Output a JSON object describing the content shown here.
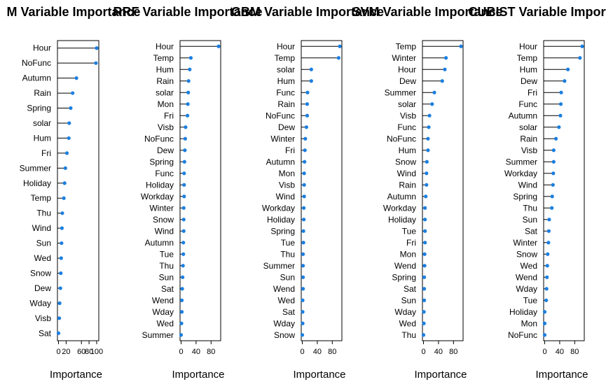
{
  "chart_data": [
    {
      "type": "lollipop",
      "title": "M Variable Importance",
      "xlabel": "Importance",
      "xlim": [
        0,
        100
      ],
      "xticks": [
        0,
        20,
        60,
        80,
        100
      ],
      "xtick_labels": [
        "0",
        "20",
        "60",
        "80",
        "100"
      ],
      "categories": [
        "Hour",
        "NoFunc",
        "Autumn",
        "Rain",
        "Spring",
        "solar",
        "Hum",
        "Fri",
        "Summer",
        "Holiday",
        "Temp",
        "Thu",
        "Wind",
        "Sun",
        "Wed",
        "Snow",
        "Dew",
        "Wday",
        "Visb",
        "Sat"
      ],
      "values": [
        100,
        98,
        47,
        37,
        32,
        28,
        27,
        22,
        18,
        16,
        14,
        10,
        9,
        8,
        7,
        6,
        5,
        3,
        2,
        0
      ]
    },
    {
      "type": "lollipop",
      "title": "RRF Variable Importance",
      "xlabel": "Importance",
      "xlim": [
        0,
        100
      ],
      "xticks": [
        0,
        40,
        80
      ],
      "xtick_labels": [
        "0",
        "40",
        "80"
      ],
      "categories": [
        "Hour",
        "Temp",
        "Hum",
        "Rain",
        "solar",
        "Mon",
        "Fri",
        "Visb",
        "NoFunc",
        "Dew",
        "Spring",
        "Func",
        "Holiday",
        "Workday",
        "Winter",
        "Snow",
        "Wind",
        "Autumn",
        "Tue",
        "Thu",
        "Sun",
        "Sat",
        "Wend",
        "Wday",
        "Wed",
        "Summer"
      ],
      "values": [
        100,
        26,
        23,
        20,
        19,
        18,
        17,
        12,
        11,
        10,
        9,
        8,
        8,
        8,
        7,
        7,
        7,
        6,
        6,
        5,
        4,
        3,
        2,
        2,
        1,
        0
      ]
    },
    {
      "type": "lollipop",
      "title": "GBM Variable Importance",
      "xlabel": "Importance",
      "xlim": [
        0,
        100
      ],
      "xticks": [
        0,
        40,
        80
      ],
      "xtick_labels": [
        "0",
        "40",
        "80"
      ],
      "categories": [
        "Hour",
        "Temp",
        "solar",
        "Hum",
        "Func",
        "Rain",
        "NoFunc",
        "Dew",
        "Winter",
        "Fri",
        "Autumn",
        "Mon",
        "Visb",
        "Wind",
        "Workday",
        "Holiday",
        "Spring",
        "Tue",
        "Thu",
        "Summer",
        "Sun",
        "Wend",
        "Wed",
        "Sat",
        "Wday",
        "Snow"
      ],
      "values": [
        100,
        97,
        24,
        24,
        14,
        13,
        13,
        11,
        8,
        7,
        6,
        5,
        5,
        5,
        4,
        4,
        3,
        3,
        2,
        2,
        2,
        2,
        1,
        1,
        1,
        0
      ]
    },
    {
      "type": "lollipop",
      "title": "SVM Variable Importance",
      "xlabel": "Importance",
      "xlim": [
        0,
        100
      ],
      "xticks": [
        0,
        40,
        80
      ],
      "xtick_labels": [
        "0",
        "40",
        "80"
      ],
      "categories": [
        "Temp",
        "Winter",
        "Hour",
        "Dew",
        "Summer",
        "solar",
        "Visb",
        "Func",
        "NoFunc",
        "Hum",
        "Snow",
        "Wind",
        "Rain",
        "Autumn",
        "Workday",
        "Holiday",
        "Tue",
        "Fri",
        "Mon",
        "Wend",
        "Spring",
        "Sat",
        "Sun",
        "Wday",
        "Wed",
        "Thu"
      ],
      "values": [
        100,
        60,
        57,
        50,
        29,
        23,
        16,
        14,
        12,
        12,
        9,
        8,
        8,
        6,
        4,
        4,
        4,
        4,
        3,
        3,
        2,
        2,
        2,
        1,
        1,
        0
      ]
    },
    {
      "type": "lollipop",
      "title": "CUBIST Variable Importance",
      "xlabel": "Importance",
      "xlim": [
        0,
        100
      ],
      "xticks": [
        0,
        40,
        80
      ],
      "xtick_labels": [
        "0",
        "40",
        "80"
      ],
      "categories": [
        "Hour",
        "Temp",
        "Hum",
        "Dew",
        "Fri",
        "Func",
        "Autumn",
        "solar",
        "Rain",
        "Visb",
        "Summer",
        "Workday",
        "Wind",
        "Spring",
        "Thu",
        "Sun",
        "Sat",
        "Winter",
        "Snow",
        "Wed",
        "Wend",
        "Wday",
        "Tue",
        "Holiday",
        "Mon",
        "NoFunc"
      ],
      "values": [
        100,
        94,
        62,
        53,
        44,
        43,
        42,
        38,
        30,
        24,
        24,
        23,
        22,
        20,
        19,
        12,
        11,
        10,
        8,
        7,
        6,
        5,
        4,
        0,
        0,
        0
      ]
    }
  ],
  "colors": {
    "point": "#1b7fe0",
    "stem": "#000000",
    "panel_border": "#000000"
  }
}
